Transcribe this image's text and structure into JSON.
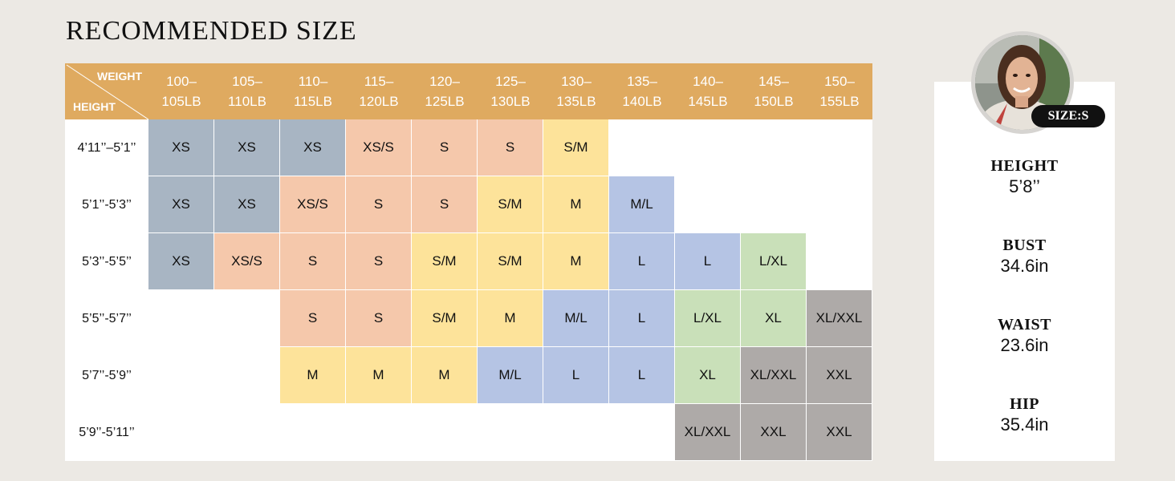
{
  "title": "RECOMMENDED SIZE",
  "corner": {
    "weight_label": "WEIGHT",
    "height_label": "HEIGHT"
  },
  "weights": [
    [
      "100–",
      "105LB"
    ],
    [
      "105–",
      "110LB"
    ],
    [
      "110–",
      "115LB"
    ],
    [
      "115–",
      "120LB"
    ],
    [
      "120–",
      "125LB"
    ],
    [
      "125–",
      "130LB"
    ],
    [
      "130–",
      "135LB"
    ],
    [
      "135–",
      "140LB"
    ],
    [
      "140–",
      "145LB"
    ],
    [
      "145–",
      "150LB"
    ],
    [
      "150–",
      "155LB"
    ]
  ],
  "heights": [
    "4’11’’–5’1’’",
    "5’1’’-5’3’’",
    "5’3’’-5’5’’",
    "5’5’’-5’7’’",
    "5’7’’-5’9’’",
    "5’9’’-5’11’’"
  ],
  "grid": [
    [
      "XS",
      "XS",
      "XS",
      "XS/S",
      "S",
      "S",
      "S/M",
      "",
      "",
      "",
      ""
    ],
    [
      "XS",
      "XS",
      "XS/S",
      "S",
      "S",
      "S/M",
      "M",
      "M/L",
      "",
      "",
      ""
    ],
    [
      "XS",
      "XS/S",
      "S",
      "S",
      "S/M",
      "S/M",
      "M",
      "L",
      "L",
      "L/XL",
      ""
    ],
    [
      "",
      "",
      "S",
      "S",
      "S/M",
      "M",
      "M/L",
      "L",
      "L/XL",
      "XL",
      "XL/XXL"
    ],
    [
      "",
      "",
      "M",
      "M",
      "M",
      "M/L",
      "L",
      "L",
      "XL",
      "XL/XXL",
      "XXL"
    ],
    [
      "",
      "",
      "",
      "",
      "",
      "",
      "",
      "",
      "XL/XXL",
      "XXL",
      "XXL"
    ]
  ],
  "colors": {
    "header": "#dfaa60",
    "XS": "#a8b5c3",
    "XS/S": "#f5c8ab",
    "S": "#f5c8ab",
    "S/M": "#fde39a",
    "M": "#fde39a",
    "M/L": "#b5c4e4",
    "L": "#b5c4e4",
    "L/XL": "#c9e0b9",
    "XL": "#c9e0b9",
    "XL/XXL": "#aeaaa8",
    "XXL": "#aeaaa8"
  },
  "model": {
    "size_badge": "SIZE:S",
    "measurements": [
      {
        "label": "HEIGHT",
        "value": "5’8’’"
      },
      {
        "label": "BUST",
        "value": "34.6in"
      },
      {
        "label": "WAIST",
        "value": "23.6in"
      },
      {
        "label": "HIP",
        "value": "35.4in"
      }
    ]
  }
}
